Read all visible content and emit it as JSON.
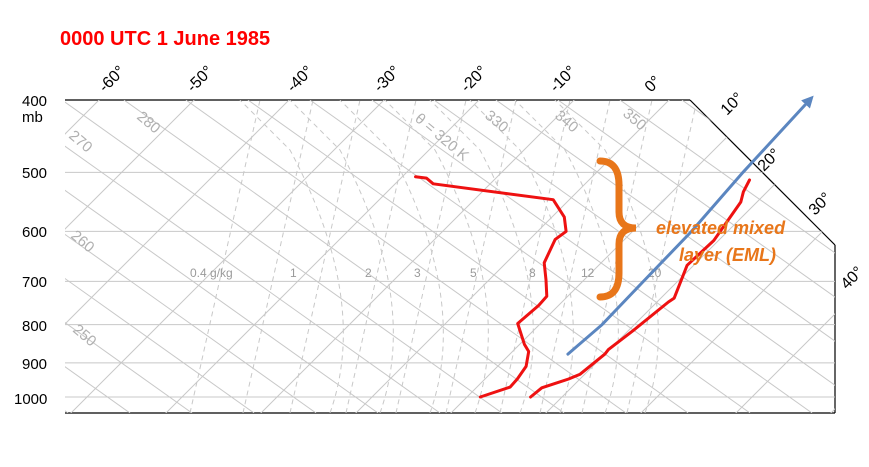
{
  "title": "0000 UTC 1 June 1985",
  "chart_data": {
    "type": "skew-t",
    "y_axis": {
      "top_label": "400",
      "unit": "mb",
      "tick_labels": [
        "500",
        "600",
        "700",
        "800",
        "900",
        "1000"
      ],
      "ylim": [
        1000,
        400
      ]
    },
    "temperature_ticks": [
      "-60°",
      "-50°",
      "-40°",
      "-30°",
      "-20°",
      "-10°",
      "0°",
      "10°",
      "20°",
      "30°",
      "40°"
    ],
    "dry_adiabat_labels": [
      "250",
      "260",
      "270",
      "280"
    ],
    "theta_e_labels": [
      "330",
      "340",
      "350"
    ],
    "theta_label": "θ = 320 K",
    "mixing_ratio_labels": [
      "0.4 g/kg",
      "1",
      "2",
      "3",
      "5",
      "8",
      "12",
      "20"
    ],
    "series": [
      {
        "name": "temperature",
        "color": "#ee1111",
        "points": [
          [
            1000,
            -13.3
          ],
          [
            972,
            -13.1
          ],
          [
            946,
            -11.2
          ],
          [
            932,
            -10.5
          ],
          [
            876,
            -10.0
          ],
          [
            864,
            -10.1
          ],
          [
            814,
            -9.5
          ],
          [
            746,
            -8.8
          ],
          [
            737,
            -8.6
          ],
          [
            666,
            -10.7
          ],
          [
            617,
            -10.5
          ],
          [
            548,
            -11.7
          ],
          [
            531,
            -12.5
          ],
          [
            512,
            -13.1
          ]
        ]
      },
      {
        "name": "dewpoint",
        "color": "#ee1111",
        "points": [
          [
            1000,
            -18.6
          ],
          [
            970,
            -16.5
          ],
          [
            946,
            -16.6
          ],
          [
            910,
            -17.0
          ],
          [
            869,
            -18.3
          ],
          [
            850,
            -19.5
          ],
          [
            797,
            -22.4
          ],
          [
            754,
            -22.1
          ],
          [
            733,
            -22.2
          ],
          [
            697,
            -24.0
          ],
          [
            661,
            -26.0
          ],
          [
            615,
            -27.3
          ],
          [
            600,
            -27.0
          ],
          [
            574,
            -28.7
          ],
          [
            544,
            -31.7
          ],
          [
            518,
            -46.0
          ],
          [
            509,
            -47.3
          ],
          [
            507,
            -48.6
          ]
        ]
      },
      {
        "name": "parcel",
        "color": "#5b86c0",
        "points": [
          [
            876,
            -13.9
          ],
          [
            800,
            -13.4
          ],
          [
            700,
            -13.6
          ],
          [
            600,
            -13.8
          ],
          [
            500,
            -14.6
          ],
          [
            400,
            -15.2
          ]
        ]
      }
    ],
    "annotation": {
      "line1": "elevated mixed",
      "line2": "layer (EML)",
      "color": "#e8761a"
    }
  }
}
